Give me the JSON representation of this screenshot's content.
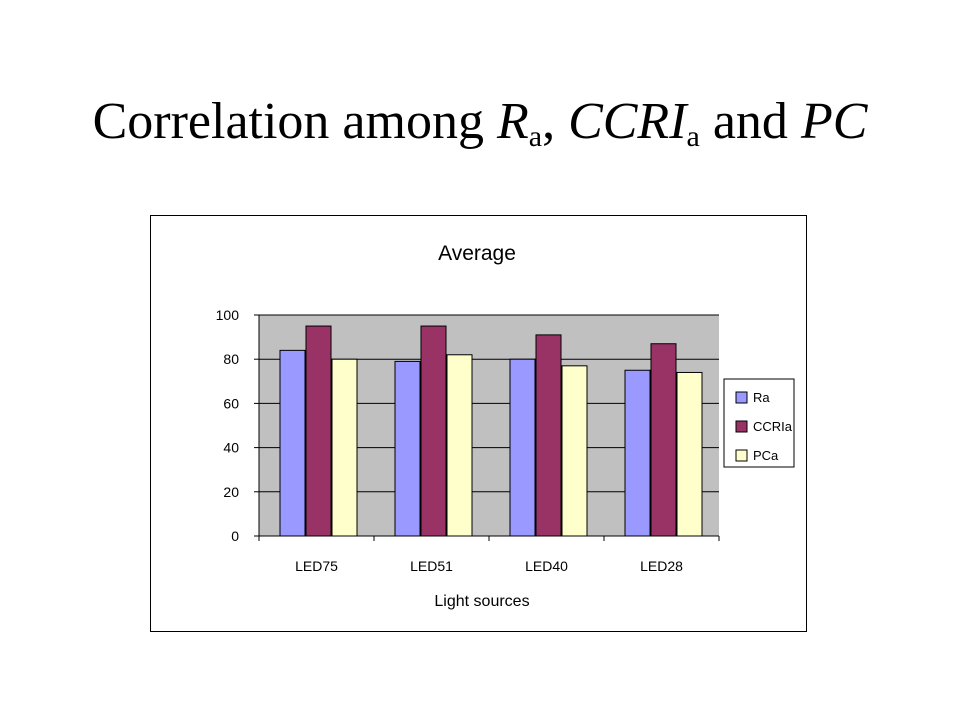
{
  "slide": {
    "title_pre": "Correlation among ",
    "title_ra": "R",
    "title_ra_sub": "a",
    "title_sep": ", ",
    "title_ccri": "CCRI",
    "title_ccri_sub": "a",
    "title_and": " and ",
    "title_pc": "PC"
  },
  "chart_data": {
    "type": "bar",
    "title": "Average",
    "xlabel": "Light sources",
    "ylabel": "",
    "ylim": [
      0,
      100
    ],
    "yticks": [
      0,
      20,
      40,
      60,
      80,
      100
    ],
    "grid": true,
    "legend_position": "right",
    "plot_background": "#c0c0c0",
    "categories": [
      "LED75",
      "LED51",
      "LED40",
      "LED28"
    ],
    "series": [
      {
        "name": "Ra",
        "color": "#9999ff",
        "values": [
          84,
          79,
          80,
          75
        ]
      },
      {
        "name": "CCRIa",
        "color": "#993366",
        "values": [
          95,
          95,
          91,
          87
        ]
      },
      {
        "name": "PCa",
        "color": "#ffffcc",
        "values": [
          80,
          82,
          77,
          74
        ]
      }
    ]
  }
}
